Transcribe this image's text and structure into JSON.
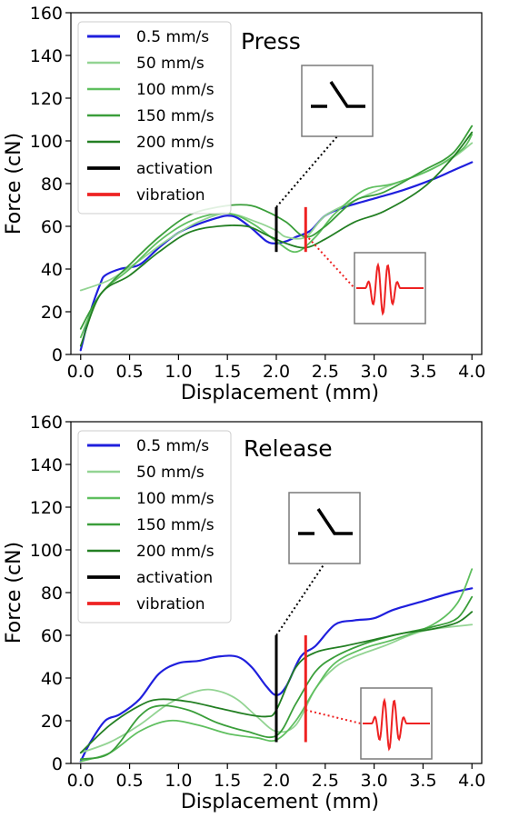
{
  "chart_data": [
    {
      "type": "line",
      "title": "Press",
      "xlabel": "Displacement (mm)",
      "ylabel": "Force (cN)",
      "xlim": [
        -0.1,
        4.1
      ],
      "ylim": [
        0,
        160
      ],
      "xticks": [
        "0.0",
        "0.5",
        "1.0",
        "1.5",
        "2.0",
        "2.5",
        "3.0",
        "3.5",
        "4.0"
      ],
      "yticks": [
        "0",
        "20",
        "40",
        "60",
        "80",
        "100",
        "120",
        "140",
        "160"
      ],
      "legend_position": "top-left",
      "series": [
        {
          "name": "0.5 mm/s",
          "color": "#1f1fdd",
          "width": 2.2,
          "points": [
            [
              0,
              2
            ],
            [
              0.1,
              20
            ],
            [
              0.2,
              33
            ],
            [
              0.25,
              37
            ],
            [
              0.4,
              40
            ],
            [
              0.6,
              42
            ],
            [
              0.8,
              50
            ],
            [
              1.0,
              57
            ],
            [
              1.2,
              61
            ],
            [
              1.4,
              64
            ],
            [
              1.5,
              65
            ],
            [
              1.6,
              64
            ],
            [
              1.75,
              59
            ],
            [
              1.9,
              53
            ],
            [
              2.0,
              52
            ],
            [
              2.1,
              53
            ],
            [
              2.2,
              55
            ],
            [
              2.35,
              58
            ],
            [
              2.5,
              65
            ],
            [
              2.7,
              69
            ],
            [
              3.0,
              73
            ],
            [
              3.3,
              77
            ],
            [
              3.6,
              82
            ],
            [
              3.8,
              86
            ],
            [
              4.0,
              90
            ]
          ]
        },
        {
          "name": "50 mm/s",
          "color": "#93d493",
          "width": 1.8,
          "points": [
            [
              0,
              30
            ],
            [
              0.3,
              35
            ],
            [
              0.6,
              44
            ],
            [
              0.9,
              54
            ],
            [
              1.2,
              62
            ],
            [
              1.5,
              66
            ],
            [
              1.8,
              62
            ],
            [
              2.0,
              58
            ],
            [
              2.1,
              55
            ],
            [
              2.3,
              55
            ],
            [
              2.5,
              65
            ],
            [
              2.8,
              72
            ],
            [
              3.1,
              78
            ],
            [
              3.5,
              85
            ],
            [
              3.8,
              92
            ],
            [
              4.0,
              99
            ]
          ]
        },
        {
          "name": "100 mm/s",
          "color": "#5fbf5f",
          "width": 1.8,
          "points": [
            [
              0,
              8
            ],
            [
              0.2,
              28
            ],
            [
              0.5,
              40
            ],
            [
              0.8,
              53
            ],
            [
              1.1,
              62
            ],
            [
              1.4,
              66
            ],
            [
              1.6,
              65
            ],
            [
              1.8,
              60
            ],
            [
              2.0,
              53
            ],
            [
              2.2,
              48
            ],
            [
              2.4,
              55
            ],
            [
              2.6,
              66
            ],
            [
              2.9,
              77
            ],
            [
              3.2,
              80
            ],
            [
              3.6,
              87
            ],
            [
              3.9,
              96
            ],
            [
              4.0,
              103
            ]
          ]
        },
        {
          "name": "150 mm/s",
          "color": "#3a9e3a",
          "width": 1.8,
          "points": [
            [
              0,
              12
            ],
            [
              0.2,
              28
            ],
            [
              0.5,
              42
            ],
            [
              0.8,
              55
            ],
            [
              1.1,
              65
            ],
            [
              1.4,
              69
            ],
            [
              1.7,
              70
            ],
            [
              1.9,
              67
            ],
            [
              2.1,
              62
            ],
            [
              2.3,
              55
            ],
            [
              2.5,
              60
            ],
            [
              2.8,
              72
            ],
            [
              3.1,
              76
            ],
            [
              3.5,
              86
            ],
            [
              3.8,
              94
            ],
            [
              4.0,
              107
            ]
          ]
        },
        {
          "name": "200 mm/s",
          "color": "#237f23",
          "width": 1.8,
          "points": [
            [
              0,
              4
            ],
            [
              0.2,
              28
            ],
            [
              0.5,
              37
            ],
            [
              0.8,
              48
            ],
            [
              1.1,
              57
            ],
            [
              1.4,
              60
            ],
            [
              1.7,
              60
            ],
            [
              1.9,
              56
            ],
            [
              2.1,
              52
            ],
            [
              2.3,
              50
            ],
            [
              2.5,
              54
            ],
            [
              2.8,
              62
            ],
            [
              3.1,
              67
            ],
            [
              3.5,
              78
            ],
            [
              3.8,
              92
            ],
            [
              4.0,
              104
            ]
          ]
        }
      ],
      "markers": [
        {
          "name": "activation",
          "color": "#000000",
          "x": 2.0,
          "y_range": [
            48,
            69
          ]
        },
        {
          "name": "vibration",
          "color": "#ee2222",
          "x": 2.3,
          "y_range": [
            48,
            69
          ]
        }
      ]
    },
    {
      "type": "line",
      "title": "Release",
      "xlabel": "Displacement (mm)",
      "ylabel": "Force (cN)",
      "xlim": [
        -0.1,
        4.1
      ],
      "ylim": [
        0,
        160
      ],
      "xticks": [
        "0.0",
        "0.5",
        "1.0",
        "1.5",
        "2.0",
        "2.5",
        "3.0",
        "3.5",
        "4.0"
      ],
      "yticks": [
        "0",
        "20",
        "40",
        "60",
        "80",
        "100",
        "120",
        "140",
        "160"
      ],
      "legend_position": "top-left",
      "series": [
        {
          "name": "0.5 mm/s",
          "color": "#1f1fdd",
          "width": 2.2,
          "points": [
            [
              0,
              1
            ],
            [
              0.1,
              10
            ],
            [
              0.25,
              20
            ],
            [
              0.4,
              23
            ],
            [
              0.6,
              30
            ],
            [
              0.8,
              42
            ],
            [
              1.0,
              47
            ],
            [
              1.2,
              48
            ],
            [
              1.4,
              50
            ],
            [
              1.6,
              50
            ],
            [
              1.75,
              45
            ],
            [
              1.9,
              36
            ],
            [
              2.0,
              32
            ],
            [
              2.1,
              36
            ],
            [
              2.25,
              50
            ],
            [
              2.4,
              55
            ],
            [
              2.6,
              65
            ],
            [
              2.8,
              67
            ],
            [
              3.0,
              68
            ],
            [
              3.2,
              72
            ],
            [
              3.5,
              76
            ],
            [
              3.8,
              80
            ],
            [
              4.0,
              82
            ]
          ]
        },
        {
          "name": "50 mm/s",
          "color": "#93d493",
          "width": 1.8,
          "points": [
            [
              0,
              5
            ],
            [
              0.3,
              10
            ],
            [
              0.6,
              18
            ],
            [
              0.9,
              28
            ],
            [
              1.2,
              34
            ],
            [
              1.4,
              34
            ],
            [
              1.6,
              30
            ],
            [
              1.8,
              22
            ],
            [
              2.0,
              15
            ],
            [
              2.2,
              18
            ],
            [
              2.4,
              35
            ],
            [
              2.6,
              45
            ],
            [
              2.8,
              50
            ],
            [
              3.1,
              55
            ],
            [
              3.5,
              62
            ],
            [
              4.0,
              65
            ]
          ]
        },
        {
          "name": "100 mm/s",
          "color": "#5fbf5f",
          "width": 1.8,
          "points": [
            [
              0,
              1
            ],
            [
              0.3,
              5
            ],
            [
              0.6,
              15
            ],
            [
              0.9,
              20
            ],
            [
              1.2,
              18
            ],
            [
              1.5,
              14
            ],
            [
              1.8,
              12
            ],
            [
              2.0,
              11
            ],
            [
              2.2,
              20
            ],
            [
              2.4,
              35
            ],
            [
              2.6,
              47
            ],
            [
              2.9,
              54
            ],
            [
              3.2,
              58
            ],
            [
              3.6,
              65
            ],
            [
              3.85,
              75
            ],
            [
              4.0,
              91
            ]
          ]
        },
        {
          "name": "150 mm/s",
          "color": "#3a9e3a",
          "width": 1.8,
          "points": [
            [
              0,
              2
            ],
            [
              0.3,
              5
            ],
            [
              0.6,
              22
            ],
            [
              0.8,
              27
            ],
            [
              1.1,
              25
            ],
            [
              1.4,
              19
            ],
            [
              1.7,
              15
            ],
            [
              2.0,
              13
            ],
            [
              2.2,
              28
            ],
            [
              2.4,
              43
            ],
            [
              2.6,
              50
            ],
            [
              2.9,
              56
            ],
            [
              3.2,
              60
            ],
            [
              3.6,
              64
            ],
            [
              3.85,
              68
            ],
            [
              4.0,
              78
            ]
          ]
        },
        {
          "name": "200 mm/s",
          "color": "#237f23",
          "width": 1.8,
          "points": [
            [
              0,
              5
            ],
            [
              0.3,
              18
            ],
            [
              0.6,
              27
            ],
            [
              0.8,
              30
            ],
            [
              1.1,
              29
            ],
            [
              1.4,
              26
            ],
            [
              1.7,
              23
            ],
            [
              1.9,
              22
            ],
            [
              2.0,
              25
            ],
            [
              2.2,
              45
            ],
            [
              2.4,
              52
            ],
            [
              2.7,
              55
            ],
            [
              3.0,
              58
            ],
            [
              3.3,
              61
            ],
            [
              3.6,
              63
            ],
            [
              3.85,
              66
            ],
            [
              4.0,
              71
            ]
          ]
        }
      ],
      "markers": [
        {
          "name": "activation",
          "color": "#000000",
          "x": 2.0,
          "y_range": [
            10,
            60
          ]
        },
        {
          "name": "vibration",
          "color": "#ee2222",
          "x": 2.3,
          "y_range": [
            10,
            60
          ]
        }
      ]
    }
  ]
}
